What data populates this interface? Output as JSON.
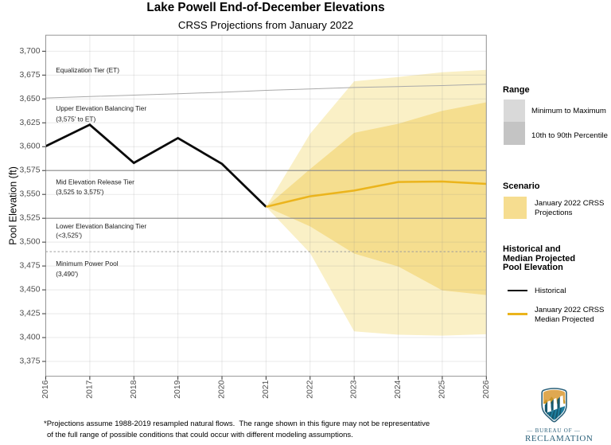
{
  "title": "Lake Powell End-of-December Elevations",
  "subtitle": "CRSS Projections from January 2022",
  "chart_data": {
    "type": "line",
    "title": "Lake Powell End-of-December Elevations",
    "subtitle": "CRSS Projections from January 2022",
    "ylabel": "Pool Elevation (ft)",
    "xlim": [
      2016,
      2026
    ],
    "ylim": [
      3359.5,
      3716.8
    ],
    "x_ticks": [
      2016,
      2017,
      2018,
      2019,
      2020,
      2021,
      2022,
      2023,
      2024,
      2025,
      2026
    ],
    "y_ticks": [
      3375,
      3400,
      3425,
      3450,
      3475,
      3500,
      3525,
      3550,
      3575,
      3600,
      3625,
      3650,
      3675,
      3700
    ],
    "grid": true,
    "historical": {
      "name": "Historical",
      "years": [
        2016,
        2017,
        2018,
        2019,
        2020,
        2021
      ],
      "values": [
        3600.5,
        3623,
        3583,
        3609,
        3582,
        3537
      ]
    },
    "projection": {
      "name": "January 2022 CRSS Projections",
      "years": [
        2021,
        2022,
        2023,
        2024,
        2025,
        2026
      ],
      "median": [
        3537,
        3548,
        3554,
        3563,
        3563.5,
        3561
      ],
      "p90": [
        3537,
        3576.5,
        3614.5,
        3624,
        3637.5,
        3646.5
      ],
      "p10": [
        3537,
        3516.5,
        3488,
        3474.5,
        3449.5,
        3444.5
      ],
      "max": [
        3537,
        3613.5,
        3668.5,
        3673,
        3678,
        3680.5
      ],
      "min": [
        3537,
        3488.5,
        3406.5,
        3403,
        3402,
        3403.5
      ]
    },
    "equalization_line": {
      "years": [
        2016,
        2017,
        2018,
        2019,
        2020,
        2021,
        2022,
        2023,
        2024,
        2025,
        2026
      ],
      "values": [
        3651,
        3652.5,
        3654,
        3655.5,
        3657,
        3659,
        3660.5,
        3662,
        3663,
        3664,
        3665.5
      ]
    },
    "reference_lines": [
      {
        "value": 3575,
        "style": "solid"
      },
      {
        "value": 3525,
        "style": "solid"
      },
      {
        "value": 3490,
        "style": "dashed"
      }
    ],
    "annotations": [
      {
        "text": "Equalization Tier (ET)",
        "x": 2016.23,
        "y": 3680.3
      },
      {
        "text": "Upper Elevation Balancing Tier",
        "x": 2016.23,
        "y": 3640.1
      },
      {
        "text": "(3,575' to ET)",
        "x": 2016.23,
        "y": 3628.8
      },
      {
        "text": "Mid Elevation Release Tier",
        "x": 2016.23,
        "y": 3563.2
      },
      {
        "text": "(3,525 to 3,575')",
        "x": 2016.23,
        "y": 3552.8
      },
      {
        "text": "Lower Elevation Balancing Tier",
        "x": 2016.23,
        "y": 3516.8
      },
      {
        "text": "(<3,525')",
        "x": 2016.23,
        "y": 3507.4
      },
      {
        "text": "Minimum Power Pool",
        "x": 2016.23,
        "y": 3477.7
      },
      {
        "text": "(3,490')",
        "x": 2016.23,
        "y": 3466.8
      }
    ]
  },
  "colors": {
    "pale_band": "#FAF0C6",
    "dark_band": "#F5DE8F",
    "median_line": "#EBB41C",
    "historical_line": "#0a0a0a",
    "equalization_line": "#a9a9a9",
    "tier_line": "#8c8c8c",
    "dashed_line": "#9c9c9c",
    "panel_border": "#969696",
    "tick": "#333333",
    "tick_label": "#4d4d4d",
    "legend_light_grey": "#D9D9D9",
    "legend_dark_grey": "#C4C4C4",
    "legend_yellow": "#F6DD90",
    "logo_teal": "#2a607a",
    "logo_gold": "#dfa851",
    "logo_gold_dark": "#c89427",
    "logo_blue": "#1e7d9e",
    "logo_blue_dark": "#15586e"
  },
  "legend": {
    "range": {
      "header": "Range",
      "items": [
        {
          "label": "Minimum to Maximum"
        },
        {
          "label": "10th to 90th Percentile"
        }
      ]
    },
    "scenario": {
      "header": "Scenario",
      "item_line1": "January 2022 CRSS",
      "item_line2": "Projections"
    },
    "lines": {
      "header_line1": "Historical and",
      "header_line2": "Median Projected",
      "header_line3": "Pool Elevation",
      "item1_label": "Historical",
      "item2_line1": "January 2022 CRSS",
      "item2_line2": "Median Projected"
    }
  },
  "footnote_line1": "*Projections assume 1988-2019 resampled natural flows.  The range shown in this figure may not be representative",
  "footnote_line2": "of the full range of possible conditions that could occur with different modeling assumptions.",
  "logo": {
    "bureau_of": "— BUREAU OF —",
    "reclamation": "RECLAMATION"
  }
}
